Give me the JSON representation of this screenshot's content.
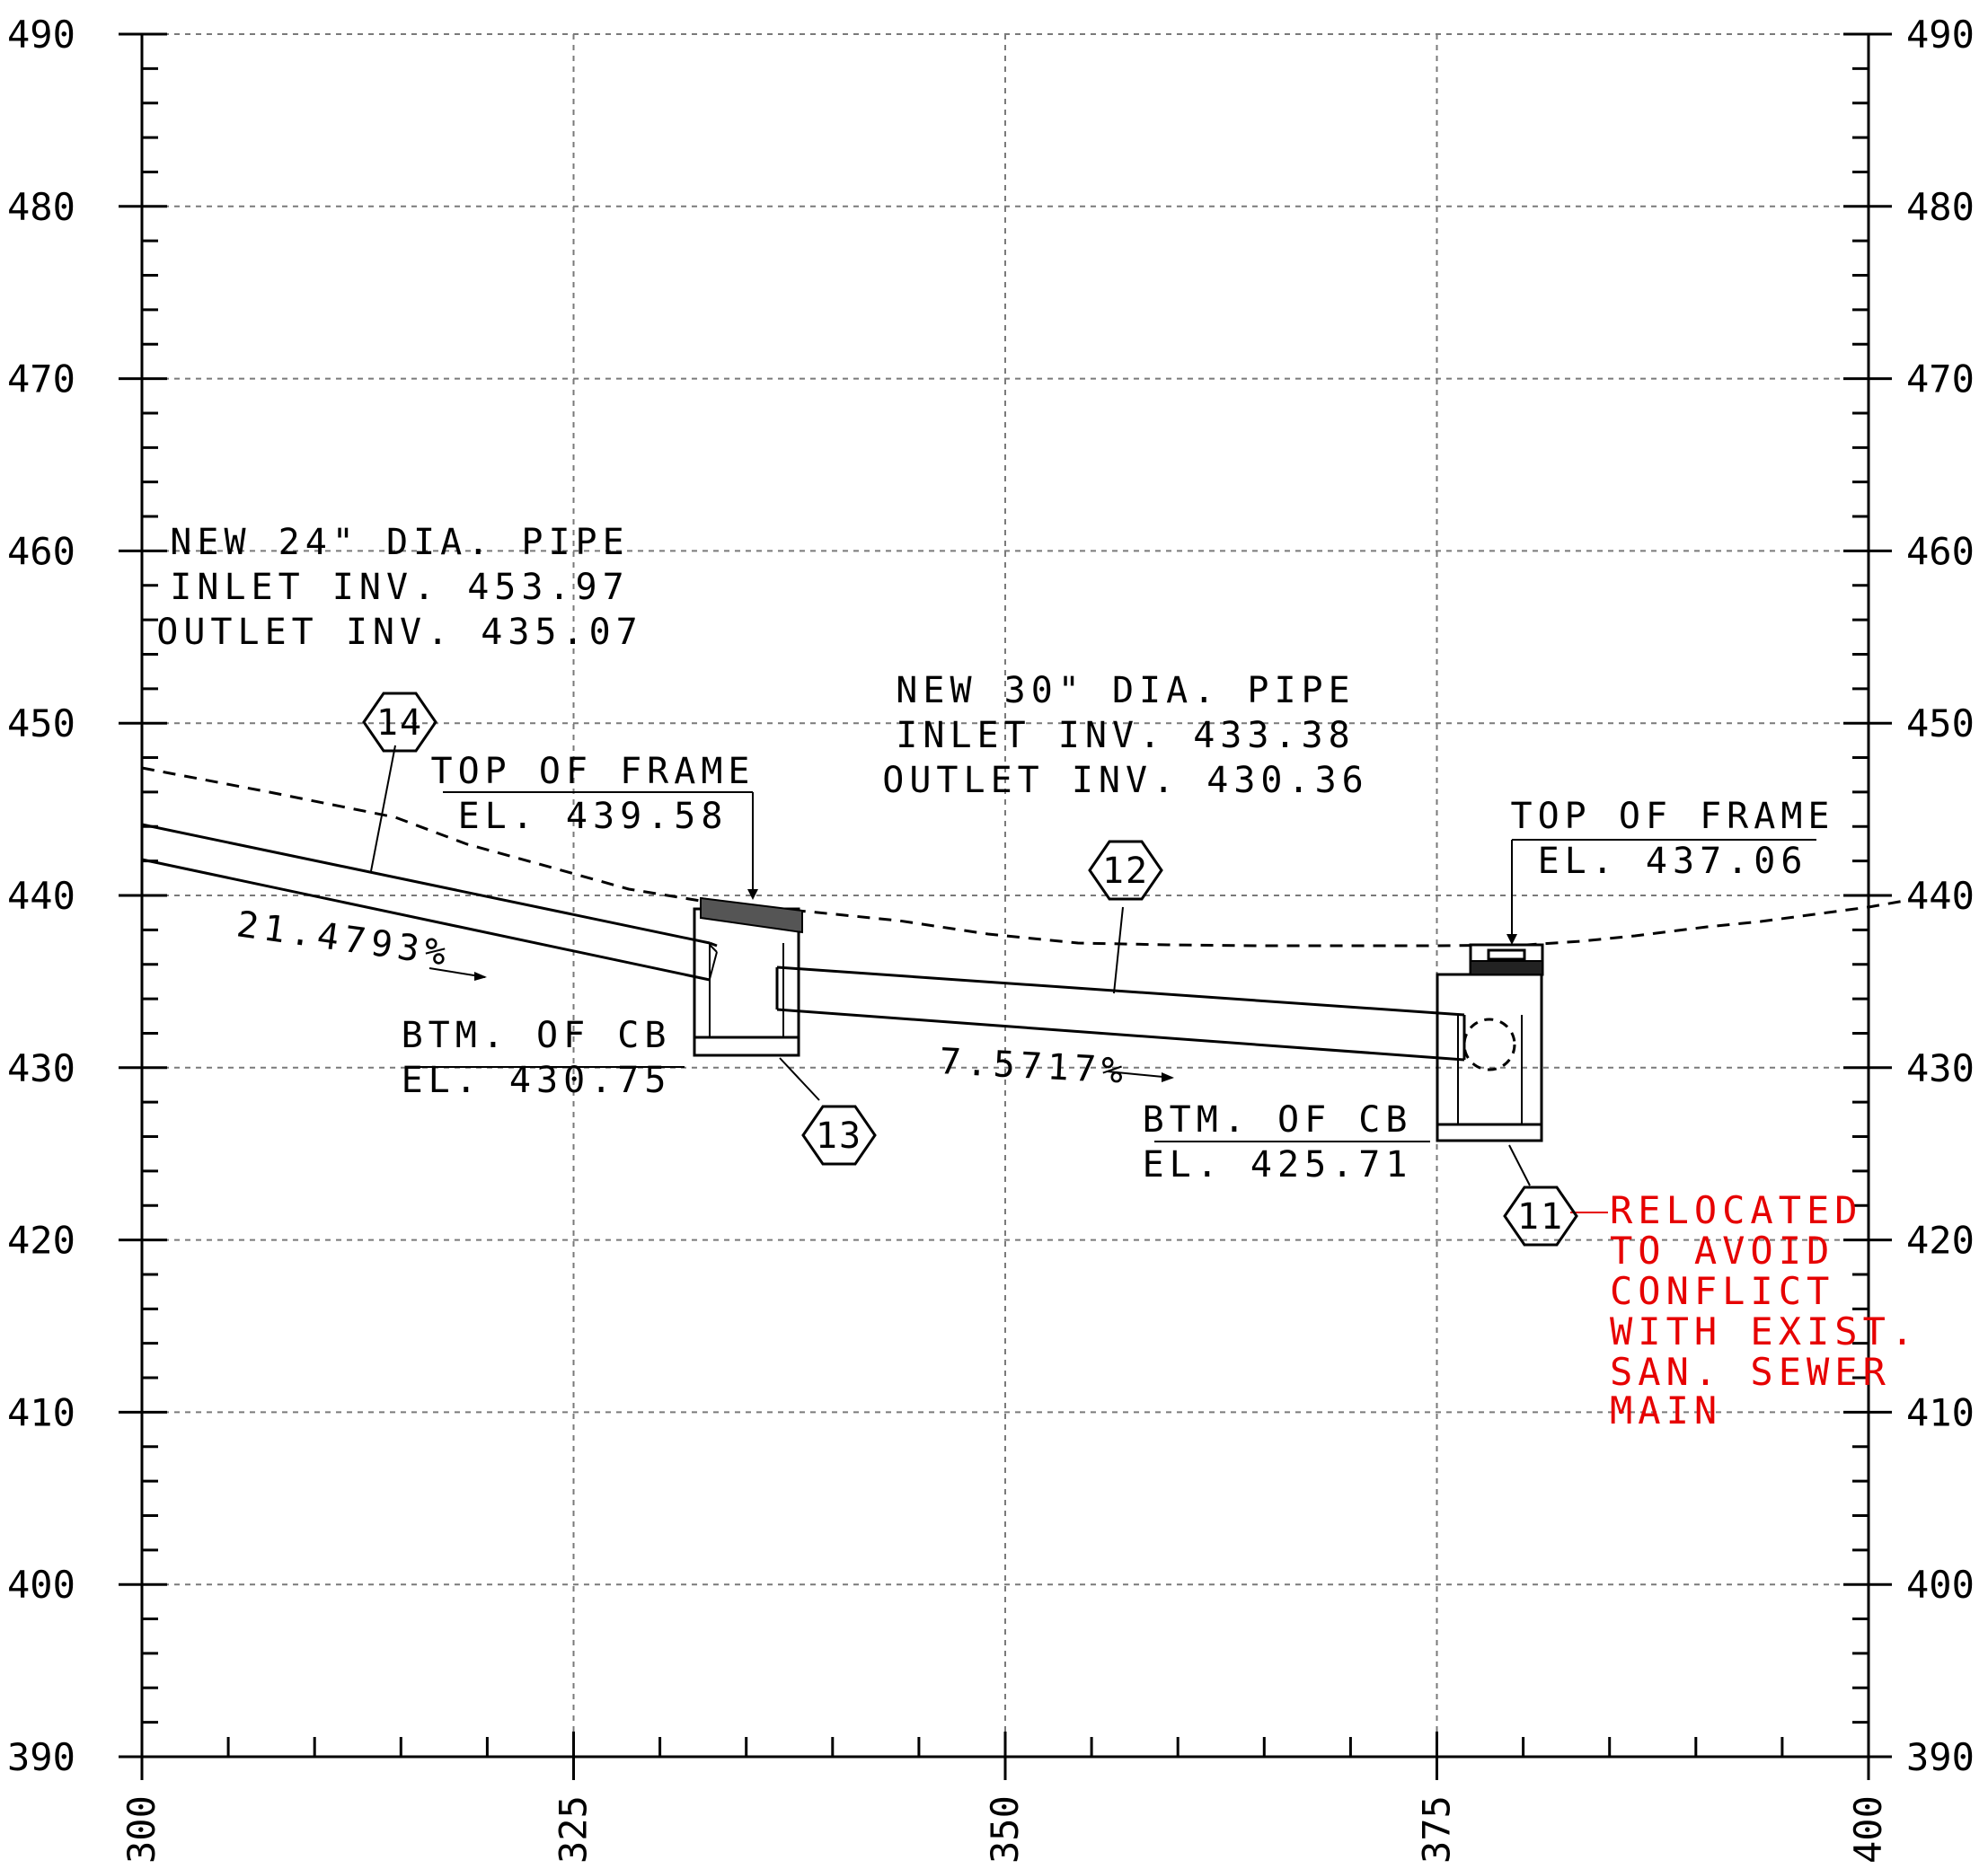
{
  "axes": {
    "y_ticks": [
      "390",
      "400",
      "410",
      "420",
      "430",
      "440",
      "450",
      "460",
      "470",
      "480",
      "490"
    ],
    "x_ticks": [
      "300",
      "325",
      "350",
      "375",
      "400"
    ]
  },
  "pipe_24": {
    "line1": "NEW 24\" DIA. PIPE",
    "line2": "INLET INV. 453.97",
    "line3": "OUTLET INV. 435.07",
    "slope": "21.4793%"
  },
  "pipe_30": {
    "line1": "NEW 30\" DIA. PIPE",
    "line2": "INLET INV. 433.38",
    "line3": "OUTLET INV. 430.36",
    "slope": "7.5717%"
  },
  "cb13": {
    "top_label": "TOP OF FRAME",
    "top_el": "EL. 439.58",
    "btm_label": "BTM. OF CB",
    "btm_el": "EL. 430.75"
  },
  "cb11": {
    "top_label": "TOP OF FRAME",
    "top_el": "EL. 437.06",
    "btm_label": "BTM. OF CB",
    "btm_el": "EL. 425.71"
  },
  "tags": {
    "t14": "14",
    "t13": "13",
    "t12": "12",
    "t11": "11"
  },
  "note": {
    "color": "#e60000",
    "lines": [
      "RELOCATED",
      "TO AVOID",
      "CONFLICT",
      "WITH EXIST.",
      "SAN. SEWER",
      "MAIN"
    ]
  }
}
